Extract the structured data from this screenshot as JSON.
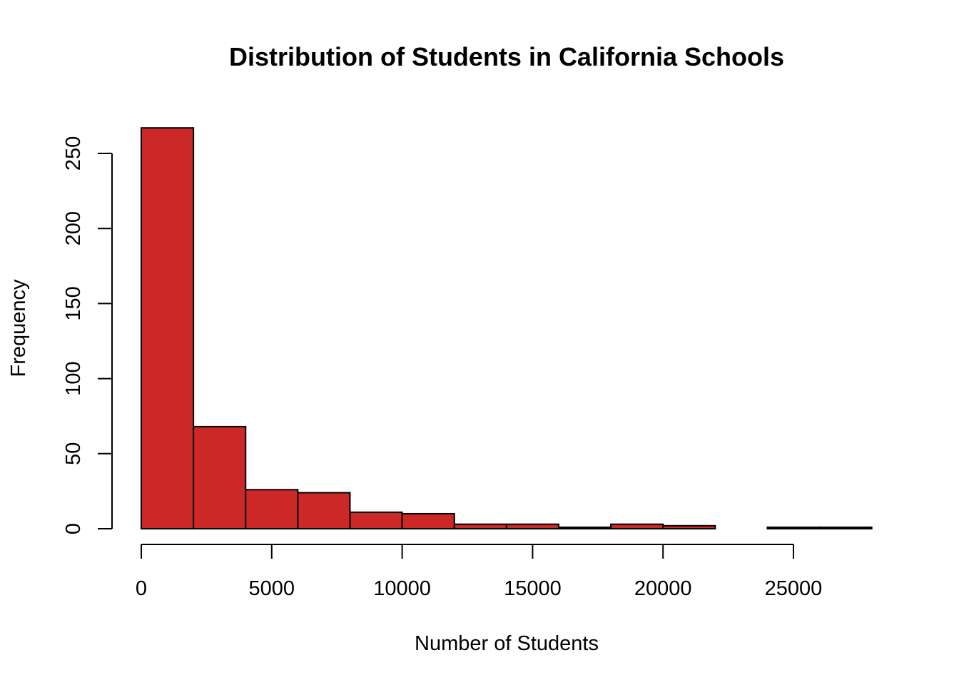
{
  "chart_data": {
    "type": "bar",
    "title": "Distribution of Students in California Schools",
    "xlabel": "Number of Students",
    "ylabel": "Frequency",
    "bin_edges": [
      0,
      2000,
      4000,
      6000,
      8000,
      10000,
      12000,
      14000,
      16000,
      18000,
      20000,
      22000,
      24000,
      26000,
      28000
    ],
    "values": [
      267,
      68,
      26,
      24,
      11,
      10,
      3,
      3,
      1,
      3,
      2,
      0,
      1,
      1
    ],
    "xticks": [
      0,
      5000,
      10000,
      15000,
      20000,
      25000
    ],
    "yticks": [
      0,
      50,
      100,
      150,
      200,
      250
    ],
    "xlim": [
      0,
      25000
    ],
    "ylim": [
      0,
      250
    ],
    "bar_color": "#CC2828",
    "grid": false
  }
}
